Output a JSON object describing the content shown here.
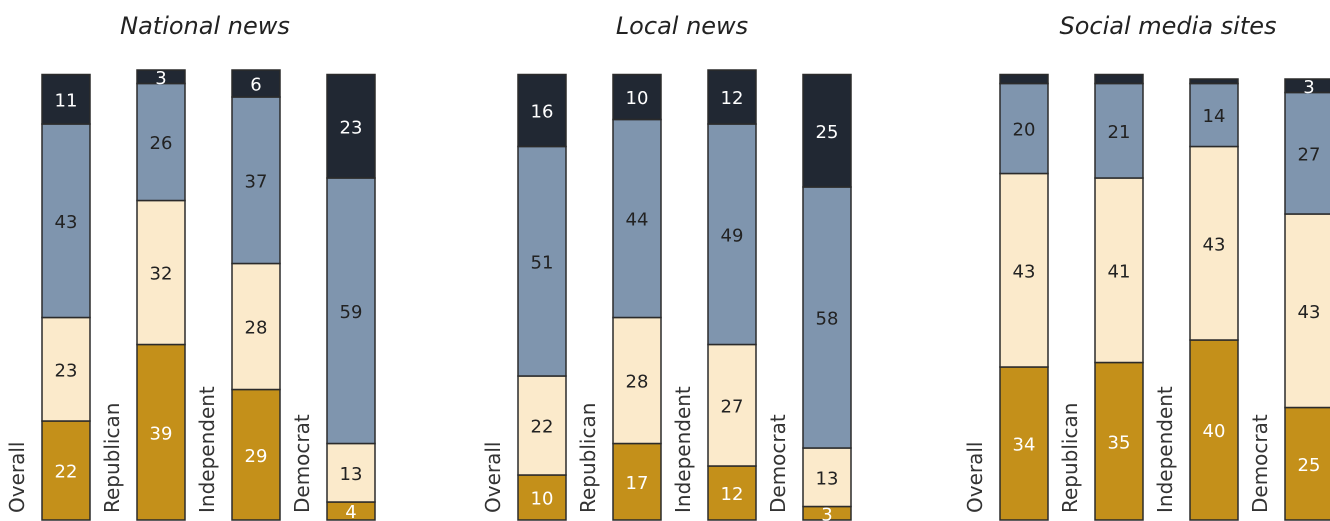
{
  "chart_data": [
    {
      "type": "bar",
      "title": "National news",
      "categories": [
        "Overall",
        "Republican",
        "Independent",
        "Democrat"
      ],
      "series": [
        {
          "values": [
            22,
            39,
            29,
            4
          ],
          "color": "#C4901A"
        },
        {
          "values": [
            23,
            32,
            28,
            13
          ],
          "color": "#FBEACB"
        },
        {
          "values": [
            43,
            26,
            37,
            59
          ],
          "color": "#7F95AE"
        },
        {
          "values": [
            11,
            3,
            6,
            23
          ],
          "color": "#212833"
        }
      ],
      "ylim": [
        0,
        100
      ]
    },
    {
      "type": "bar",
      "title": "Local news",
      "categories": [
        "Overall",
        "Republican",
        "Independent",
        "Democrat"
      ],
      "series": [
        {
          "values": [
            10,
            17,
            12,
            3
          ],
          "color": "#C4901A"
        },
        {
          "values": [
            22,
            28,
            27,
            13
          ],
          "color": "#FBEACB"
        },
        {
          "values": [
            51,
            44,
            49,
            58
          ],
          "color": "#7F95AE"
        },
        {
          "values": [
            16,
            10,
            12,
            25
          ],
          "color": "#212833"
        }
      ],
      "ylim": [
        0,
        100
      ]
    },
    {
      "type": "bar",
      "title": "Social media sites",
      "categories": [
        "Overall",
        "Republican",
        "Independent",
        "Democrat"
      ],
      "series": [
        {
          "values": [
            34,
            35,
            40,
            25
          ],
          "color": "#C4901A"
        },
        {
          "values": [
            43,
            41,
            43,
            43
          ],
          "color": "#FBEACB"
        },
        {
          "values": [
            20,
            21,
            14,
            27
          ],
          "color": "#7F95AE"
        },
        {
          "values": [
            2,
            2,
            1,
            3
          ],
          "color": "#212833",
          "hidden_labels": [
            true,
            true,
            true,
            false
          ]
        }
      ],
      "ylim": [
        0,
        100
      ]
    }
  ]
}
